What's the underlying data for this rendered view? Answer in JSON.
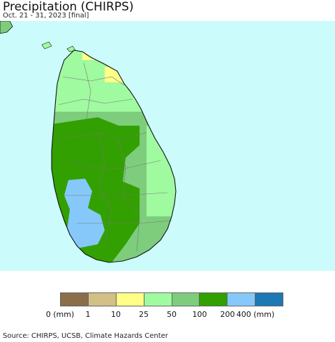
{
  "title": "Precipitation (CHIRPS)",
  "subtitle": "Oct. 21 - 31, 2023 [final]",
  "source": "Source: CHIRPS, UCSB, Climate Hazards Center",
  "colors": {
    "ocean": "#ccfbfb",
    "land_outline": "#111111",
    "district_lines": "#777777"
  },
  "legend": {
    "colors": [
      "#8c6e4b",
      "#d2c084",
      "#ffff87",
      "#a0faa0",
      "#7dcd7d",
      "#32a000",
      "#87c8fa",
      "#1e78b4"
    ],
    "labels": [
      {
        "text": "0 (mm)",
        "boundary": 0
      },
      {
        "text": "1",
        "boundary": 1
      },
      {
        "text": "10",
        "boundary": 2
      },
      {
        "text": "25",
        "boundary": 3
      },
      {
        "text": "50",
        "boundary": 4
      },
      {
        "text": "100",
        "boundary": 5
      },
      {
        "text": "200",
        "boundary": 6
      },
      {
        "text": "400 (mm)",
        "boundary": 7
      }
    ]
  }
}
